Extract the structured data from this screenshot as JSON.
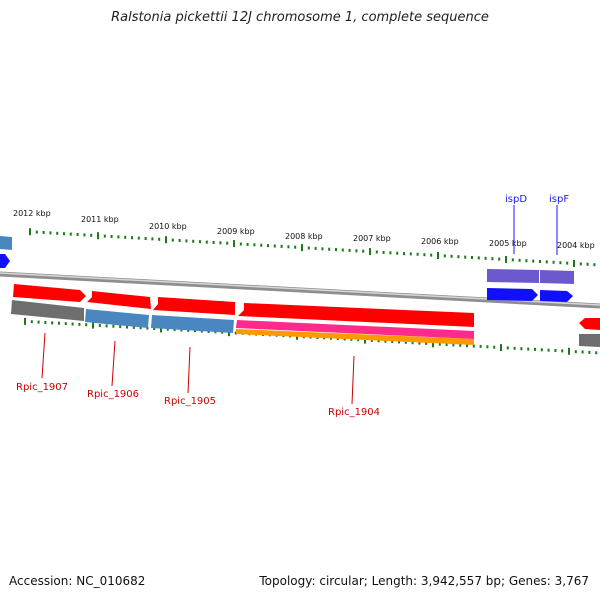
{
  "title": "Ralstonia pickettii 12J chromosome 1, complete sequence",
  "footer": {
    "accession": "Accession: NC_010682",
    "topology": "Topology: circular; Length: 3,942,557 bp; Genes: 3,767"
  },
  "colors": {
    "backbone": "#a0a0a0",
    "tick": "#1a7a1a",
    "cds": "#ff0000",
    "gene_grey": "#6e6e6e",
    "gene_blue": "#4a86c0",
    "ncrna_pink": "#ff2a8c",
    "orange": "#ff9900",
    "isp_blue": "#1010ff",
    "isp_purple": "#6a5acd",
    "red_label": "#cc0000",
    "blue_label": "#1a1aff"
  },
  "kbp_labels": [
    "2012 kbp",
    "2011 kbp",
    "2010 kbp",
    "2009 kbp",
    "2008 kbp",
    "2007 kbp",
    "2006 kbp",
    "2005 kbp",
    "2004 kbp"
  ],
  "gene_labels": [
    {
      "text": "Rpic_1907",
      "color": "red"
    },
    {
      "text": "Rpic_1906",
      "color": "red"
    },
    {
      "text": "Rpic_1905",
      "color": "red"
    },
    {
      "text": "Rpic_1904",
      "color": "red"
    },
    {
      "text": "ispD",
      "color": "blue"
    },
    {
      "text": "ispF",
      "color": "blue"
    }
  ]
}
